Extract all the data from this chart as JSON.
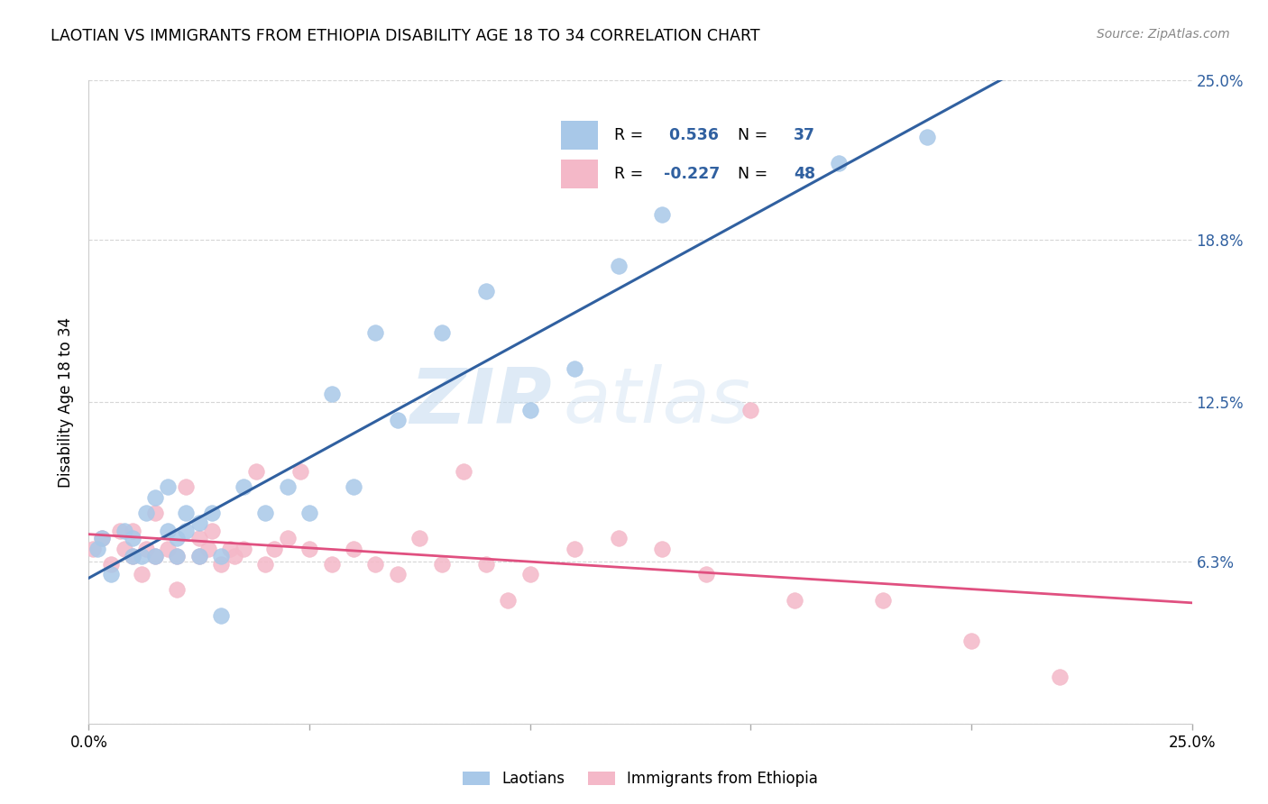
{
  "title": "LAOTIAN VS IMMIGRANTS FROM ETHIOPIA DISABILITY AGE 18 TO 34 CORRELATION CHART",
  "source": "Source: ZipAtlas.com",
  "ylabel": "Disability Age 18 to 34",
  "xlim": [
    0.0,
    0.25
  ],
  "ylim": [
    0.0,
    0.25
  ],
  "ytick_labels": [
    "",
    "6.3%",
    "12.5%",
    "18.8%",
    "25.0%"
  ],
  "ytick_positions": [
    0.0,
    0.063,
    0.125,
    0.188,
    0.25
  ],
  "xtick_labels": [
    "0.0%",
    "",
    "",
    "",
    "",
    "25.0%"
  ],
  "xtick_positions": [
    0.0,
    0.05,
    0.1,
    0.15,
    0.2,
    0.25
  ],
  "watermark_zip": "ZIP",
  "watermark_atlas": "atlas",
  "laotian_R": 0.536,
  "laotian_N": 37,
  "ethiopia_R": -0.227,
  "ethiopia_N": 48,
  "blue_scatter_color": "#a8c8e8",
  "pink_scatter_color": "#f4b8c8",
  "blue_line_color": "#3060a0",
  "pink_line_color": "#e05080",
  "legend_text_color": "#3060a0",
  "laotian_x": [
    0.002,
    0.003,
    0.005,
    0.008,
    0.01,
    0.01,
    0.012,
    0.013,
    0.015,
    0.015,
    0.018,
    0.018,
    0.02,
    0.02,
    0.022,
    0.022,
    0.025,
    0.025,
    0.028,
    0.03,
    0.03,
    0.035,
    0.04,
    0.045,
    0.05,
    0.055,
    0.06,
    0.065,
    0.07,
    0.08,
    0.09,
    0.1,
    0.11,
    0.12,
    0.13,
    0.17,
    0.19
  ],
  "laotian_y": [
    0.068,
    0.072,
    0.058,
    0.075,
    0.065,
    0.072,
    0.065,
    0.082,
    0.065,
    0.088,
    0.075,
    0.092,
    0.065,
    0.072,
    0.075,
    0.082,
    0.065,
    0.078,
    0.082,
    0.065,
    0.042,
    0.092,
    0.082,
    0.092,
    0.082,
    0.128,
    0.092,
    0.152,
    0.118,
    0.152,
    0.168,
    0.122,
    0.138,
    0.178,
    0.198,
    0.218,
    0.228
  ],
  "ethiopia_x": [
    0.001,
    0.003,
    0.005,
    0.007,
    0.008,
    0.01,
    0.01,
    0.012,
    0.013,
    0.015,
    0.015,
    0.018,
    0.02,
    0.02,
    0.022,
    0.025,
    0.025,
    0.027,
    0.028,
    0.03,
    0.032,
    0.033,
    0.035,
    0.038,
    0.04,
    0.042,
    0.045,
    0.048,
    0.05,
    0.055,
    0.06,
    0.065,
    0.07,
    0.075,
    0.08,
    0.085,
    0.09,
    0.095,
    0.1,
    0.11,
    0.12,
    0.13,
    0.14,
    0.15,
    0.16,
    0.18,
    0.2,
    0.22
  ],
  "ethiopia_y": [
    0.068,
    0.072,
    0.062,
    0.075,
    0.068,
    0.065,
    0.075,
    0.058,
    0.068,
    0.082,
    0.065,
    0.068,
    0.052,
    0.065,
    0.092,
    0.065,
    0.072,
    0.068,
    0.075,
    0.062,
    0.068,
    0.065,
    0.068,
    0.098,
    0.062,
    0.068,
    0.072,
    0.098,
    0.068,
    0.062,
    0.068,
    0.062,
    0.058,
    0.072,
    0.062,
    0.098,
    0.062,
    0.048,
    0.058,
    0.068,
    0.072,
    0.068,
    0.058,
    0.122,
    0.048,
    0.048,
    0.032,
    0.018
  ]
}
